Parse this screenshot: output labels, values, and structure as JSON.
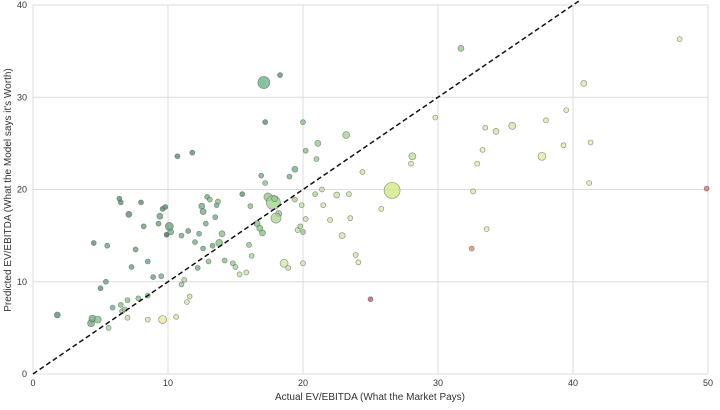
{
  "chart_data": {
    "type": "scatter",
    "title": "",
    "xlabel": "Actual EV/EBITDA (What the Market Pays)",
    "ylabel": "Predicted EV/EBITDA (What the Model says it's Worth)",
    "xlim": [
      0,
      50
    ],
    "ylim": [
      0,
      40
    ],
    "xticks": [
      0,
      10,
      20,
      30,
      40,
      50
    ],
    "yticks": [
      0,
      10,
      20,
      30,
      40
    ],
    "grid": true,
    "legend": null,
    "reference_line": {
      "label": "y = x",
      "style": "dashed",
      "color": "#111111",
      "from": [
        0,
        0
      ],
      "to": [
        40.5,
        40.5
      ]
    },
    "colors": {
      "dark_green": "#4f8f6a",
      "mid_green": "#7fbf7f",
      "light_green": "#b9df8f",
      "yellow": "#e6e89a",
      "pale": "#f1eec0",
      "red": "#d05a5a",
      "grid": "#dcdcdc"
    },
    "points": [
      {
        "x": 1.8,
        "y": 6.4,
        "s": 3,
        "c": "#4f8a6a"
      },
      {
        "x": 4.3,
        "y": 5.5,
        "s": 3.5,
        "c": "#6aa880"
      },
      {
        "x": 4.4,
        "y": 6.0,
        "s": 3.5,
        "c": "#6aa880"
      },
      {
        "x": 4.8,
        "y": 5.9,
        "s": 3.5,
        "c": "#7fb98a"
      },
      {
        "x": 4.5,
        "y": 14.2,
        "s": 2.5,
        "c": "#4f8a6a"
      },
      {
        "x": 5.0,
        "y": 9.3,
        "s": 2.5,
        "c": "#4f8a6a"
      },
      {
        "x": 5.4,
        "y": 10.0,
        "s": 2.5,
        "c": "#5f9c74"
      },
      {
        "x": 5.5,
        "y": 13.9,
        "s": 2.5,
        "c": "#5f9c74"
      },
      {
        "x": 5.6,
        "y": 5.0,
        "s": 2.5,
        "c": "#9fcf8f"
      },
      {
        "x": 5.9,
        "y": 7.2,
        "s": 2.5,
        "c": "#6aa880"
      },
      {
        "x": 6.4,
        "y": 19.0,
        "s": 2.5,
        "c": "#4f8a6a"
      },
      {
        "x": 6.5,
        "y": 18.6,
        "s": 2.5,
        "c": "#4f8a6a"
      },
      {
        "x": 6.5,
        "y": 7.5,
        "s": 2.5,
        "c": "#7fbf7f"
      },
      {
        "x": 6.6,
        "y": 6.8,
        "s": 2.5,
        "c": "#8fc78a"
      },
      {
        "x": 6.8,
        "y": 7.0,
        "s": 2.5,
        "c": "#8fc78a"
      },
      {
        "x": 7.0,
        "y": 8.0,
        "s": 2.5,
        "c": "#7fbf7f"
      },
      {
        "x": 7.0,
        "y": 6.1,
        "s": 2.5,
        "c": "#bfe09f"
      },
      {
        "x": 7.1,
        "y": 17.3,
        "s": 3,
        "c": "#4f8a6a"
      },
      {
        "x": 7.3,
        "y": 11.6,
        "s": 2.5,
        "c": "#5f9c74"
      },
      {
        "x": 7.6,
        "y": 13.5,
        "s": 2.5,
        "c": "#5f9c74"
      },
      {
        "x": 7.8,
        "y": 8.2,
        "s": 2.5,
        "c": "#7fbf7f"
      },
      {
        "x": 8.0,
        "y": 18.6,
        "s": 2.5,
        "c": "#4f8a6a"
      },
      {
        "x": 8.2,
        "y": 16.0,
        "s": 2.5,
        "c": "#5f9c74"
      },
      {
        "x": 8.5,
        "y": 12.2,
        "s": 2.5,
        "c": "#5f9c74"
      },
      {
        "x": 8.5,
        "y": 8.5,
        "s": 2.5,
        "c": "#8fc78a"
      },
      {
        "x": 8.5,
        "y": 5.9,
        "s": 2.5,
        "c": "#d3e6a5"
      },
      {
        "x": 8.9,
        "y": 10.5,
        "s": 2.5,
        "c": "#5f9c74"
      },
      {
        "x": 9.3,
        "y": 16.3,
        "s": 2.5,
        "c": "#5f9c74"
      },
      {
        "x": 9.5,
        "y": 10.6,
        "s": 2.5,
        "c": "#6aa880"
      },
      {
        "x": 9.4,
        "y": 17.1,
        "s": 3,
        "c": "#5f9c74"
      },
      {
        "x": 9.6,
        "y": 17.9,
        "s": 2.5,
        "c": "#4f8a6a"
      },
      {
        "x": 9.8,
        "y": 18.1,
        "s": 2.5,
        "c": "#4f8a6a"
      },
      {
        "x": 9.6,
        "y": 5.9,
        "s": 4,
        "c": "#e6e89a"
      },
      {
        "x": 9.9,
        "y": 15.1,
        "s": 2.5,
        "c": "#2f6a4f"
      },
      {
        "x": 10.1,
        "y": 16.0,
        "s": 4,
        "c": "#5f9c74"
      },
      {
        "x": 10.2,
        "y": 15.4,
        "s": 3,
        "c": "#6aa880"
      },
      {
        "x": 10.6,
        "y": 6.2,
        "s": 2.5,
        "c": "#d3e6a5"
      },
      {
        "x": 10.7,
        "y": 23.6,
        "s": 2.5,
        "c": "#4f8a6a"
      },
      {
        "x": 11.0,
        "y": 9.7,
        "s": 2.5,
        "c": "#8fc78a"
      },
      {
        "x": 11.0,
        "y": 15.0,
        "s": 2.5,
        "c": "#6aa880"
      },
      {
        "x": 11.2,
        "y": 10.2,
        "s": 2.5,
        "c": "#a9d38f"
      },
      {
        "x": 11.4,
        "y": 7.8,
        "s": 2.5,
        "c": "#d3e6a5"
      },
      {
        "x": 11.5,
        "y": 15.5,
        "s": 2.5,
        "c": "#5f9c74"
      },
      {
        "x": 11.6,
        "y": 8.4,
        "s": 2.5,
        "c": "#c9e19f"
      },
      {
        "x": 11.8,
        "y": 24.0,
        "s": 2.5,
        "c": "#4f8a6a"
      },
      {
        "x": 12.0,
        "y": 14.3,
        "s": 2.5,
        "c": "#6aa880"
      },
      {
        "x": 12.2,
        "y": 11.5,
        "s": 2.5,
        "c": "#6aa880"
      },
      {
        "x": 12.3,
        "y": 15.2,
        "s": 2.5,
        "c": "#6aa880"
      },
      {
        "x": 12.5,
        "y": 18.2,
        "s": 3,
        "c": "#6aa880"
      },
      {
        "x": 12.6,
        "y": 17.6,
        "s": 3,
        "c": "#6aa880"
      },
      {
        "x": 12.6,
        "y": 13.6,
        "s": 2.5,
        "c": "#6aa880"
      },
      {
        "x": 12.8,
        "y": 16.3,
        "s": 2.5,
        "c": "#6aa880"
      },
      {
        "x": 12.9,
        "y": 19.2,
        "s": 2.5,
        "c": "#6aa880"
      },
      {
        "x": 13.0,
        "y": 12.2,
        "s": 2.5,
        "c": "#7fbf7f"
      },
      {
        "x": 13.1,
        "y": 18.9,
        "s": 2.5,
        "c": "#7fbf7f"
      },
      {
        "x": 13.3,
        "y": 13.9,
        "s": 2.5,
        "c": "#6aa880"
      },
      {
        "x": 13.5,
        "y": 17.0,
        "s": 2.5,
        "c": "#6aa880"
      },
      {
        "x": 13.6,
        "y": 18.3,
        "s": 2.5,
        "c": "#6aa880"
      },
      {
        "x": 13.8,
        "y": 14.2,
        "s": 3.5,
        "c": "#7fbf7f"
      },
      {
        "x": 13.7,
        "y": 18.7,
        "s": 2.5,
        "c": "#7fbf7f"
      },
      {
        "x": 14.0,
        "y": 15.2,
        "s": 3,
        "c": "#7fbf7f"
      },
      {
        "x": 14.2,
        "y": 12.3,
        "s": 2.5,
        "c": "#7fbf7f"
      },
      {
        "x": 14.8,
        "y": 12.0,
        "s": 2.5,
        "c": "#8fc78a"
      },
      {
        "x": 15.3,
        "y": 10.8,
        "s": 2.5,
        "c": "#bfe09f"
      },
      {
        "x": 15.5,
        "y": 19.5,
        "s": 2.5,
        "c": "#4f8a6a"
      },
      {
        "x": 15.0,
        "y": 11.6,
        "s": 2.5,
        "c": "#a9d38f"
      },
      {
        "x": 15.8,
        "y": 11.0,
        "s": 2.5,
        "c": "#c9e19f"
      },
      {
        "x": 16.1,
        "y": 18.2,
        "s": 2.5,
        "c": "#7fbf7f"
      },
      {
        "x": 16.0,
        "y": 14.0,
        "s": 2.5,
        "c": "#8fc78a"
      },
      {
        "x": 16.2,
        "y": 12.8,
        "s": 2.5,
        "c": "#9fcf8f"
      },
      {
        "x": 16.6,
        "y": 16.3,
        "s": 3,
        "c": "#7fbf7f"
      },
      {
        "x": 16.9,
        "y": 21.5,
        "s": 2.5,
        "c": "#6aa880"
      },
      {
        "x": 16.8,
        "y": 15.8,
        "s": 3,
        "c": "#7fbf7f"
      },
      {
        "x": 17.0,
        "y": 15.3,
        "s": 3,
        "c": "#7fbf7f"
      },
      {
        "x": 17.2,
        "y": 20.7,
        "s": 2.5,
        "c": "#7fbf7f"
      },
      {
        "x": 17.1,
        "y": 31.6,
        "s": 6,
        "c": "#5fae84"
      },
      {
        "x": 17.2,
        "y": 27.3,
        "s": 2.5,
        "c": "#4f8a6a"
      },
      {
        "x": 17.4,
        "y": 19.2,
        "s": 4,
        "c": "#8fc78a"
      },
      {
        "x": 17.8,
        "y": 18.6,
        "s": 7,
        "c": "#9fd38a"
      },
      {
        "x": 17.9,
        "y": 19.0,
        "s": 3,
        "c": "#8fc78a"
      },
      {
        "x": 18.2,
        "y": 17.4,
        "s": 3,
        "c": "#8fc78a"
      },
      {
        "x": 18.0,
        "y": 16.9,
        "s": 5,
        "c": "#a9d38f"
      },
      {
        "x": 18.3,
        "y": 32.4,
        "s": 2.5,
        "c": "#4f8a6a"
      },
      {
        "x": 18.6,
        "y": 12.0,
        "s": 4,
        "c": "#d3e6a5"
      },
      {
        "x": 18.9,
        "y": 11.5,
        "s": 2.5,
        "c": "#c9e19f"
      },
      {
        "x": 19.0,
        "y": 21.4,
        "s": 2.5,
        "c": "#6aa880"
      },
      {
        "x": 19.4,
        "y": 22.2,
        "s": 3,
        "c": "#6aa880"
      },
      {
        "x": 19.4,
        "y": 18.9,
        "s": 2.5,
        "c": "#a9d38f"
      },
      {
        "x": 19.6,
        "y": 15.6,
        "s": 2.5,
        "c": "#bfe09f"
      },
      {
        "x": 19.8,
        "y": 16.0,
        "s": 2.5,
        "c": "#a9d38f"
      },
      {
        "x": 19.9,
        "y": 18.3,
        "s": 2.5,
        "c": "#b9df8f"
      },
      {
        "x": 20.0,
        "y": 15.4,
        "s": 2.5,
        "c": "#8fc78a"
      },
      {
        "x": 20.0,
        "y": 12.0,
        "s": 2.5,
        "c": "#d3e6a5"
      },
      {
        "x": 20.0,
        "y": 27.3,
        "s": 2.5,
        "c": "#7fbf7f"
      },
      {
        "x": 20.2,
        "y": 16.8,
        "s": 2.5,
        "c": "#c9e19f"
      },
      {
        "x": 20.2,
        "y": 24.2,
        "s": 2.5,
        "c": "#7fbf7f"
      },
      {
        "x": 20.9,
        "y": 19.5,
        "s": 2.5,
        "c": "#a9d38f"
      },
      {
        "x": 21.0,
        "y": 23.3,
        "s": 2.5,
        "c": "#8fc78a"
      },
      {
        "x": 21.1,
        "y": 25.0,
        "s": 3,
        "c": "#8fc78a"
      },
      {
        "x": 21.4,
        "y": 20.0,
        "s": 2.5,
        "c": "#bfe09f"
      },
      {
        "x": 21.5,
        "y": 18.3,
        "s": 2.5,
        "c": "#d3e6a5"
      },
      {
        "x": 22.0,
        "y": 16.7,
        "s": 2.5,
        "c": "#d3e6a5"
      },
      {
        "x": 22.5,
        "y": 19.4,
        "s": 3,
        "c": "#c9e19f"
      },
      {
        "x": 22.9,
        "y": 15.0,
        "s": 3,
        "c": "#d3e6a5"
      },
      {
        "x": 23.2,
        "y": 25.9,
        "s": 3.5,
        "c": "#9fcf8f"
      },
      {
        "x": 23.5,
        "y": 16.9,
        "s": 2.5,
        "c": "#d3e6a5"
      },
      {
        "x": 23.4,
        "y": 19.5,
        "s": 2.5,
        "c": "#c9e19f"
      },
      {
        "x": 23.9,
        "y": 12.9,
        "s": 2.5,
        "c": "#d3e6a5"
      },
      {
        "x": 24.1,
        "y": 12.1,
        "s": 2.5,
        "c": "#e6e89a"
      },
      {
        "x": 24.4,
        "y": 21.9,
        "s": 2.5,
        "c": "#c9e19f"
      },
      {
        "x": 25.0,
        "y": 8.1,
        "s": 2.5,
        "c": "#c0506a"
      },
      {
        "x": 25.8,
        "y": 17.9,
        "s": 2.5,
        "c": "#e6e89a"
      },
      {
        "x": 26.6,
        "y": 19.9,
        "s": 8,
        "c": "#cde87a"
      },
      {
        "x": 28.1,
        "y": 23.6,
        "s": 3.5,
        "c": "#b9df8f"
      },
      {
        "x": 28.0,
        "y": 22.8,
        "s": 2.5,
        "c": "#d3e6a5"
      },
      {
        "x": 29.8,
        "y": 27.8,
        "s": 2.5,
        "c": "#d3e6a5"
      },
      {
        "x": 31.7,
        "y": 35.3,
        "s": 3,
        "c": "#8fc78a"
      },
      {
        "x": 32.5,
        "y": 13.6,
        "s": 2.5,
        "c": "#e08a6a"
      },
      {
        "x": 32.6,
        "y": 19.8,
        "s": 2.5,
        "c": "#e6e89a"
      },
      {
        "x": 32.9,
        "y": 22.8,
        "s": 2.5,
        "c": "#e6e89a"
      },
      {
        "x": 33.3,
        "y": 24.3,
        "s": 2.5,
        "c": "#e6e89a"
      },
      {
        "x": 33.6,
        "y": 15.7,
        "s": 2.5,
        "c": "#e6e89a"
      },
      {
        "x": 33.5,
        "y": 26.7,
        "s": 2.5,
        "c": "#d3e6a5"
      },
      {
        "x": 34.3,
        "y": 26.3,
        "s": 3,
        "c": "#d3e6a5"
      },
      {
        "x": 35.5,
        "y": 26.9,
        "s": 3.5,
        "c": "#d3e6a5"
      },
      {
        "x": 37.7,
        "y": 23.6,
        "s": 4,
        "c": "#e6e89a"
      },
      {
        "x": 38.0,
        "y": 27.5,
        "s": 2.5,
        "c": "#e6e89a"
      },
      {
        "x": 39.3,
        "y": 24.8,
        "s": 2.5,
        "c": "#e6e89a"
      },
      {
        "x": 39.5,
        "y": 28.6,
        "s": 2.5,
        "c": "#e6e89a"
      },
      {
        "x": 40.8,
        "y": 31.5,
        "s": 3,
        "c": "#d3e6a5"
      },
      {
        "x": 41.2,
        "y": 20.7,
        "s": 2.5,
        "c": "#e6e89a"
      },
      {
        "x": 41.3,
        "y": 25.1,
        "s": 2.5,
        "c": "#e6e89a"
      },
      {
        "x": 47.9,
        "y": 36.3,
        "s": 2.5,
        "c": "#e6e89a"
      },
      {
        "x": 49.9,
        "y": 20.1,
        "s": 2.5,
        "c": "#e06a5a"
      }
    ]
  }
}
